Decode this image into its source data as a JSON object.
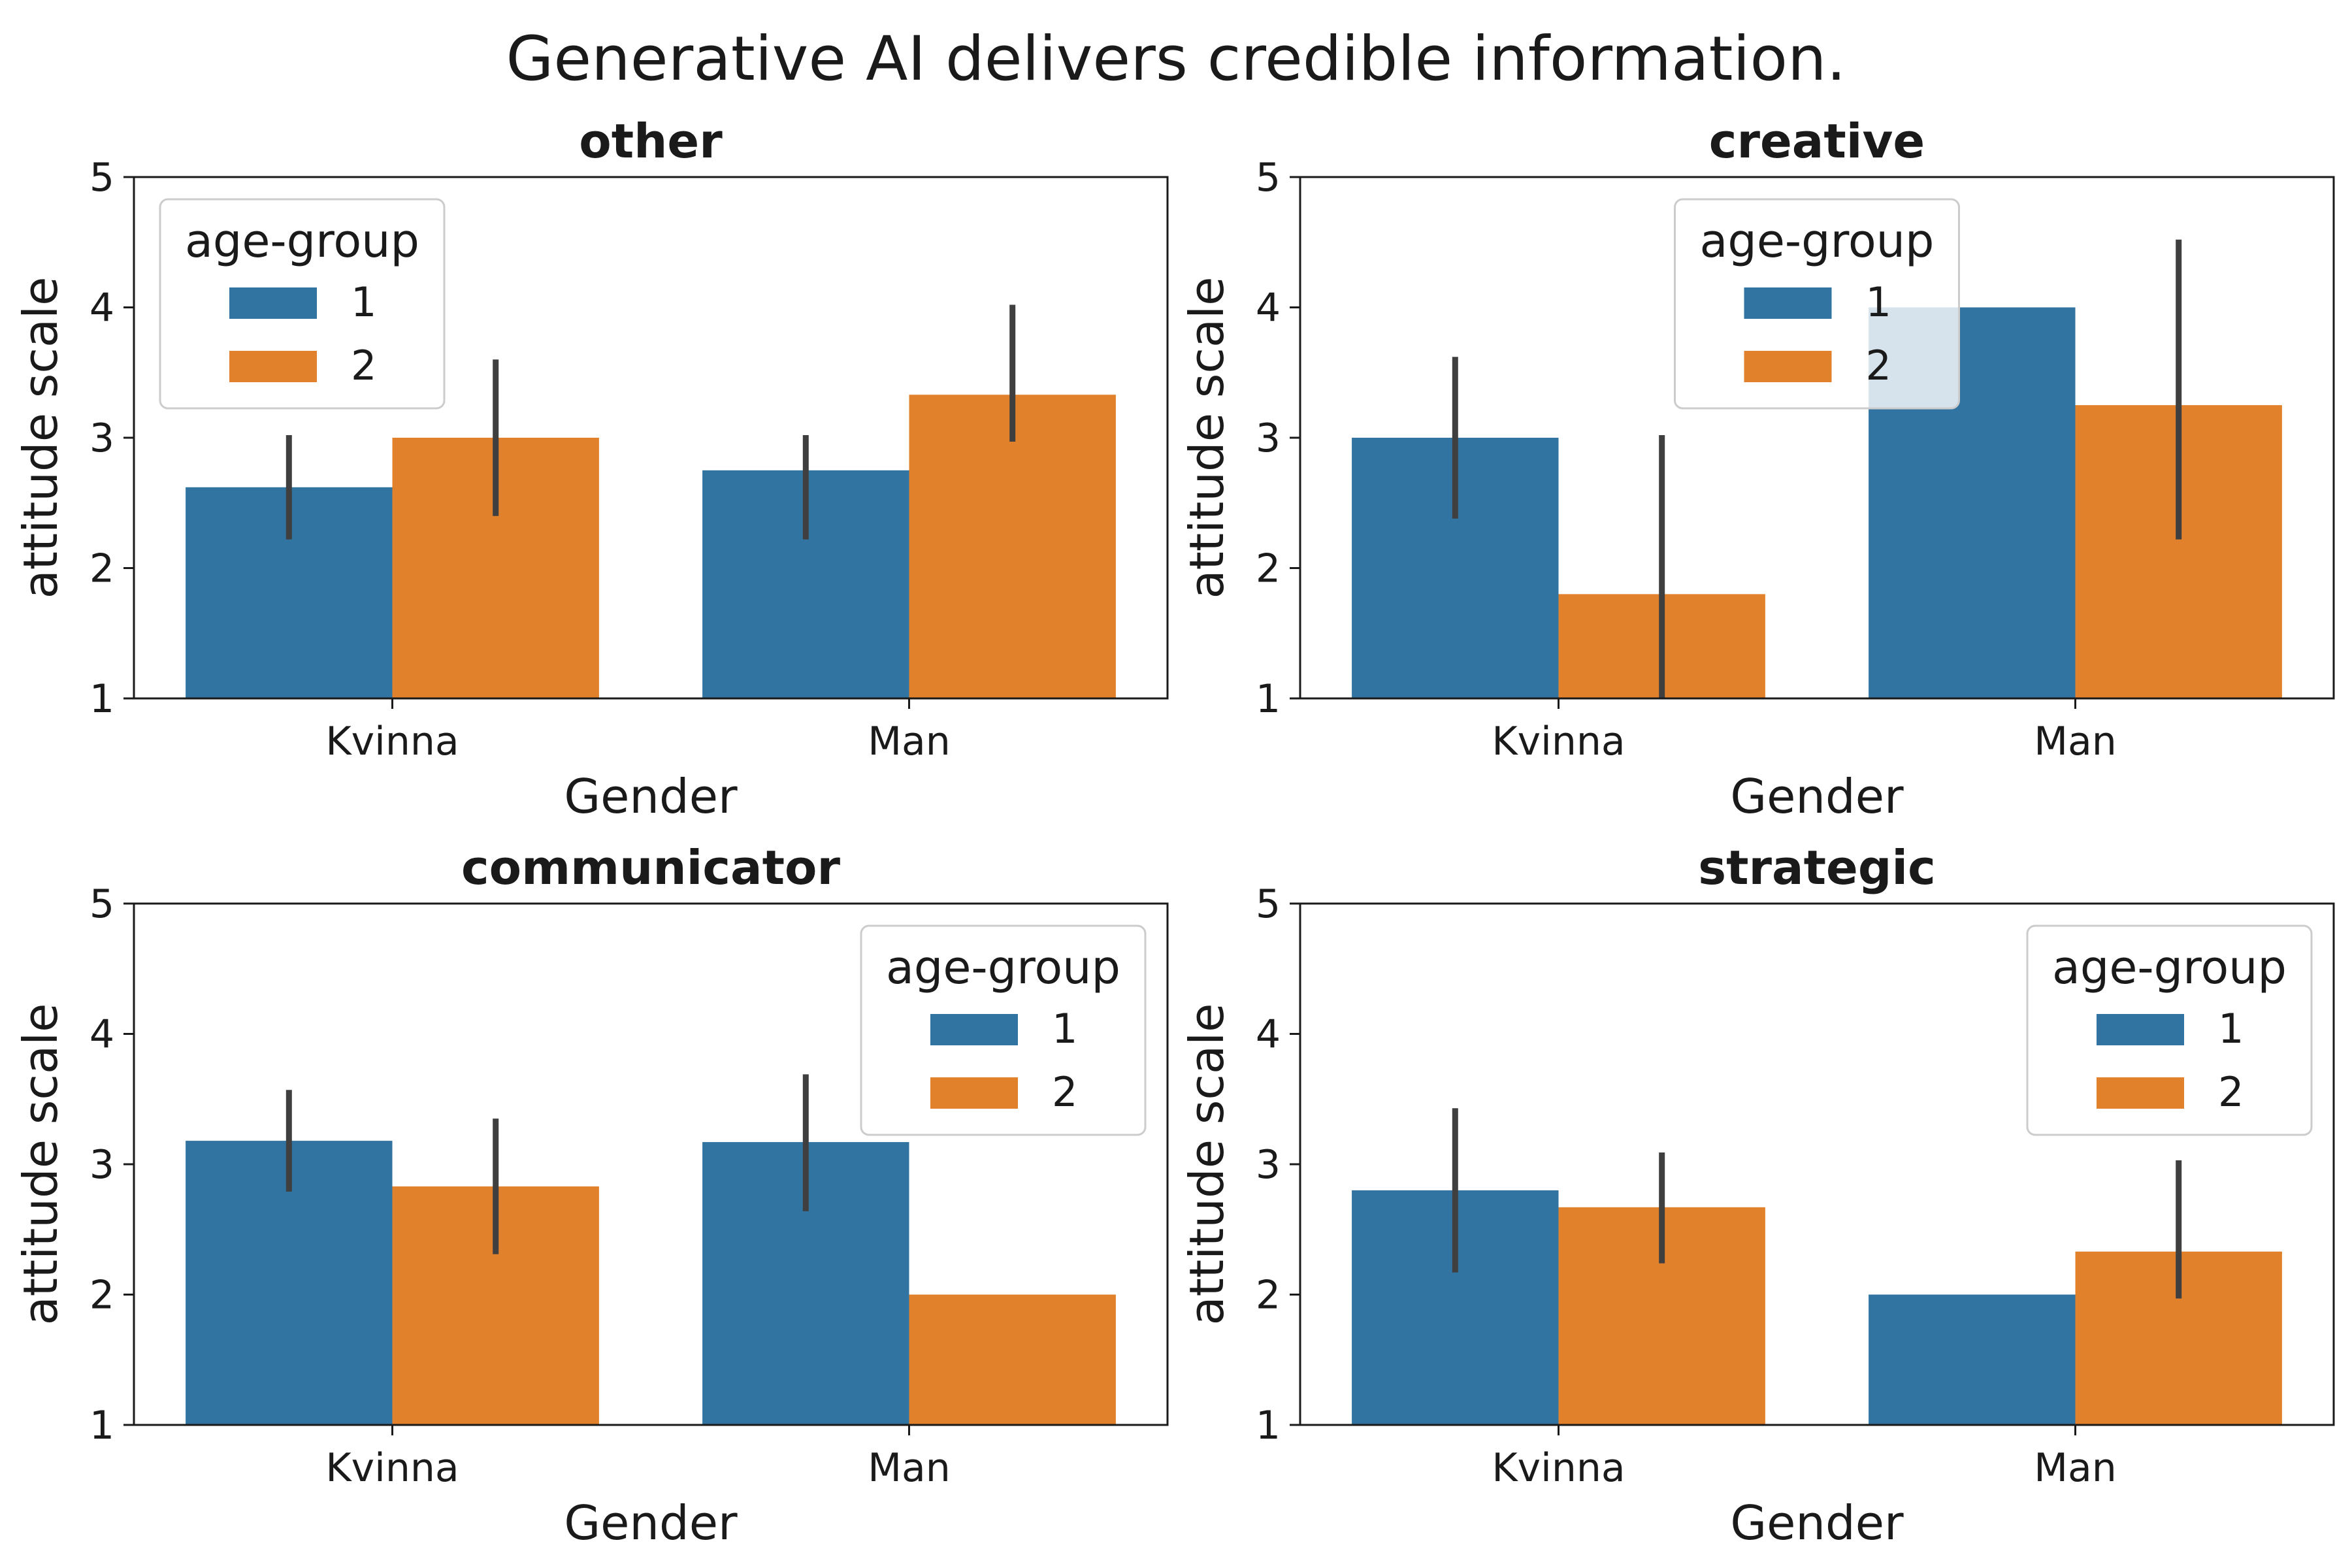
{
  "figure": {
    "title": "Generative AI delivers credible information."
  },
  "colors": {
    "1": "#3274a1",
    "2": "#e1812c",
    "error_bar": "#3f3f3f"
  },
  "chart_data": [
    {
      "type": "bar",
      "title": "other",
      "xlabel": "Gender",
      "ylabel": "attitude scale",
      "ylim": [
        1,
        5
      ],
      "yticks": [
        1,
        2,
        3,
        4,
        5
      ],
      "categories": [
        "Kvinna",
        "Man"
      ],
      "legend": {
        "title": "age-group",
        "placement": "upper-left"
      },
      "series": [
        {
          "name": "1",
          "values": [
            2.62,
            2.75
          ],
          "ci": [
            [
              2.22,
              3.02
            ],
            [
              2.22,
              3.02
            ]
          ]
        },
        {
          "name": "2",
          "values": [
            3.0,
            3.33
          ],
          "ci": [
            [
              2.4,
              3.6
            ],
            [
              2.97,
              4.02
            ]
          ]
        }
      ]
    },
    {
      "type": "bar",
      "title": "creative",
      "xlabel": "Gender",
      "ylabel": "attitude scale",
      "ylim": [
        1,
        5
      ],
      "yticks": [
        1,
        2,
        3,
        4,
        5
      ],
      "categories": [
        "Kvinna",
        "Man"
      ],
      "legend": {
        "title": "age-group",
        "placement": "upper-center"
      },
      "series": [
        {
          "name": "1",
          "values": [
            3.0,
            4.0
          ],
          "ci": [
            [
              2.38,
              3.62
            ],
            null
          ]
        },
        {
          "name": "2",
          "values": [
            1.8,
            3.25
          ],
          "ci": [
            [
              1.0,
              3.02
            ],
            [
              2.22,
              4.52
            ]
          ]
        }
      ]
    },
    {
      "type": "bar",
      "title": "communicator",
      "xlabel": "Gender",
      "ylabel": "attitude scale",
      "ylim": [
        1,
        5
      ],
      "yticks": [
        1,
        2,
        3,
        4,
        5
      ],
      "categories": [
        "Kvinna",
        "Man"
      ],
      "legend": {
        "title": "age-group",
        "placement": "upper-right"
      },
      "series": [
        {
          "name": "1",
          "values": [
            3.18,
            3.17
          ],
          "ci": [
            [
              2.79,
              3.57
            ],
            [
              2.64,
              3.69
            ]
          ]
        },
        {
          "name": "2",
          "values": [
            2.83,
            2.0
          ],
          "ci": [
            [
              2.31,
              3.35
            ],
            null
          ]
        }
      ]
    },
    {
      "type": "bar",
      "title": "strategic",
      "xlabel": "Gender",
      "ylabel": "attitude scale",
      "ylim": [
        1,
        5
      ],
      "yticks": [
        1,
        2,
        3,
        4,
        5
      ],
      "categories": [
        "Kvinna",
        "Man"
      ],
      "legend": {
        "title": "age-group",
        "placement": "upper-right"
      },
      "series": [
        {
          "name": "1",
          "values": [
            2.8,
            2.0
          ],
          "ci": [
            [
              2.17,
              3.43
            ],
            null
          ]
        },
        {
          "name": "2",
          "values": [
            2.67,
            2.33
          ],
          "ci": [
            [
              2.24,
              3.09
            ],
            [
              1.97,
              3.03
            ]
          ]
        }
      ]
    }
  ]
}
